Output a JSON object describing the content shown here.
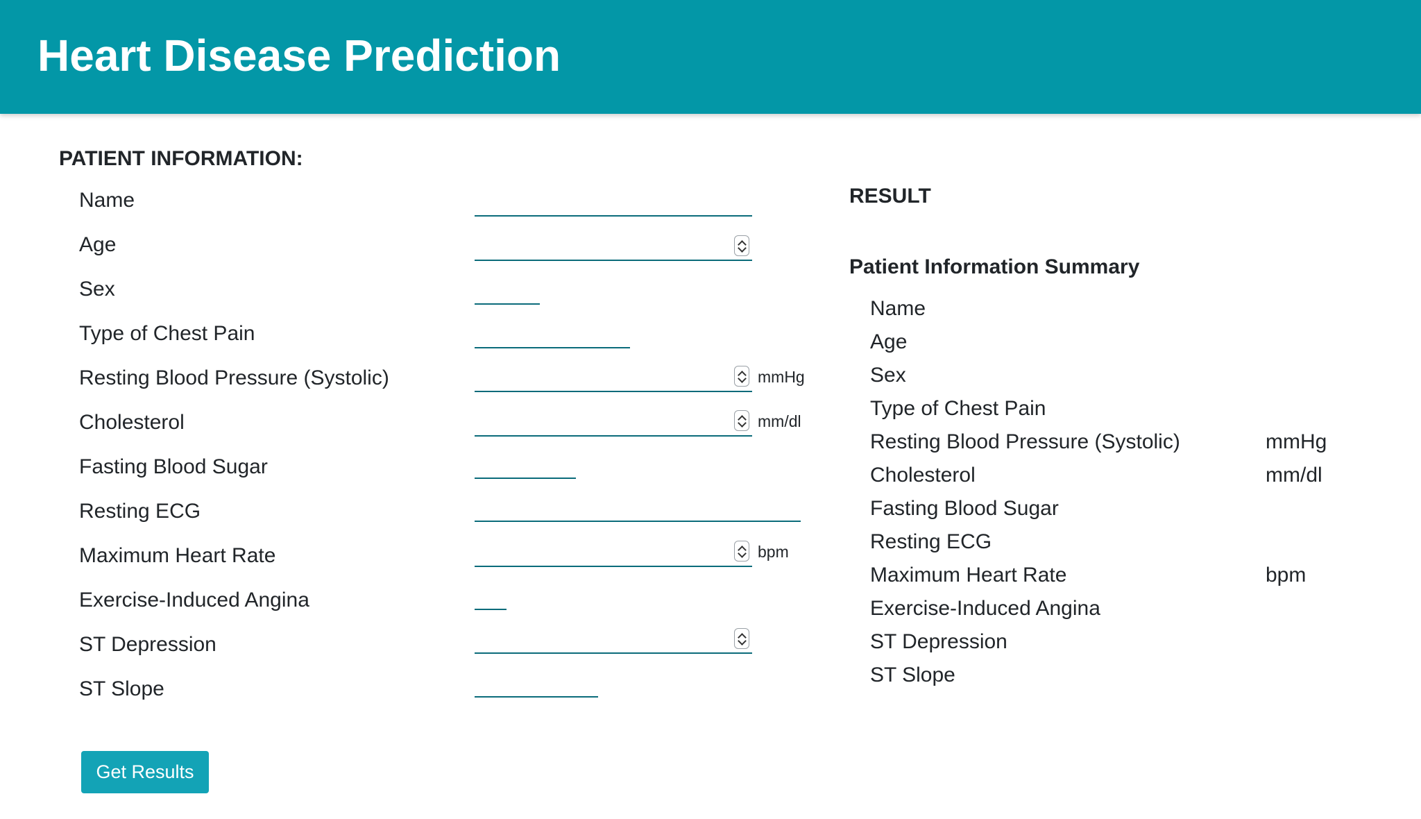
{
  "header": {
    "title": "Heart Disease Prediction",
    "bg_color": "#0397a7"
  },
  "form": {
    "section_title": "PATIENT INFORMATION:",
    "fields": [
      {
        "label": "Name",
        "type": "text",
        "value": ""
      },
      {
        "label": "Age",
        "type": "number",
        "value": ""
      },
      {
        "label": "Sex",
        "type": "select",
        "value": ""
      },
      {
        "label": "Type of Chest Pain",
        "type": "select",
        "value": ""
      },
      {
        "label": "Resting Blood Pressure (Systolic)",
        "type": "number",
        "value": "",
        "unit": "mmHg"
      },
      {
        "label": "Cholesterol",
        "type": "number",
        "value": "",
        "unit": "mm/dl"
      },
      {
        "label": "Fasting Blood Sugar",
        "type": "select",
        "value": ""
      },
      {
        "label": "Resting ECG",
        "type": "select",
        "value": ""
      },
      {
        "label": "Maximum Heart Rate",
        "type": "number",
        "value": "",
        "unit": "bpm"
      },
      {
        "label": "Exercise-Induced Angina",
        "type": "select",
        "value": ""
      },
      {
        "label": "ST Depression",
        "type": "number",
        "value": ""
      },
      {
        "label": "ST Slope",
        "type": "select",
        "value": ""
      }
    ],
    "submit_label": "Get Results",
    "button_color": "#13a3b6"
  },
  "result": {
    "title": "RESULT",
    "summary_title": "Patient Information Summary",
    "items": [
      {
        "label": "Name",
        "unit": ""
      },
      {
        "label": "Age",
        "unit": ""
      },
      {
        "label": "Sex",
        "unit": ""
      },
      {
        "label": "Type of Chest Pain",
        "unit": ""
      },
      {
        "label": "Resting Blood Pressure (Systolic)",
        "unit": "mmHg"
      },
      {
        "label": "Cholesterol",
        "unit": "mm/dl"
      },
      {
        "label": "Fasting Blood Sugar",
        "unit": ""
      },
      {
        "label": "Resting ECG",
        "unit": ""
      },
      {
        "label": "Maximum Heart Rate",
        "unit": "bpm"
      },
      {
        "label": "Exercise-Induced Angina",
        "unit": ""
      },
      {
        "label": "ST Depression",
        "unit": ""
      },
      {
        "label": "ST Slope",
        "unit": ""
      }
    ]
  }
}
